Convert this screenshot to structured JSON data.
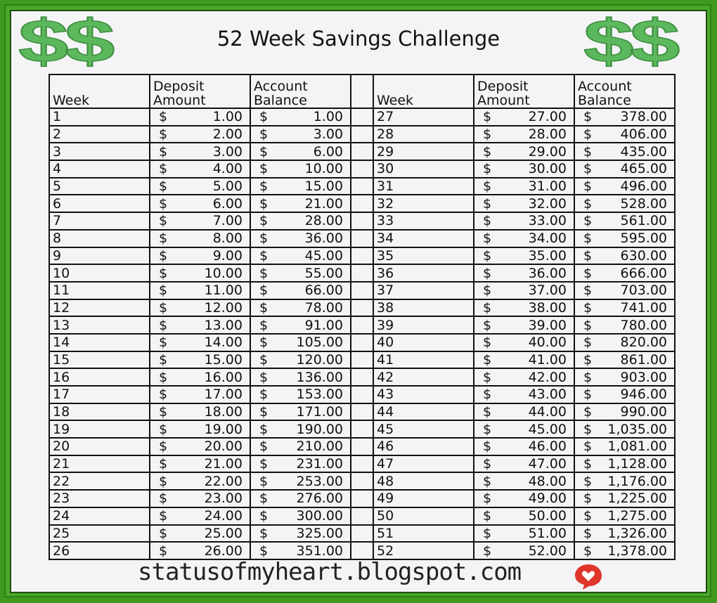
{
  "title": "52 Week Savings Challenge",
  "logo_text": "$$",
  "headers": {
    "week": "Week",
    "deposit": "Deposit Amount",
    "deposit_l1": "Deposit",
    "deposit_l2": "Amount",
    "balance_l1": "Account",
    "balance_l2": "Balance"
  },
  "currency_symbol": "$",
  "left_rows": [
    [
      "1",
      "1.00",
      "1.00"
    ],
    [
      "2",
      "2.00",
      "3.00"
    ],
    [
      "3",
      "3.00",
      "6.00"
    ],
    [
      "4",
      "4.00",
      "10.00"
    ],
    [
      "5",
      "5.00",
      "15.00"
    ],
    [
      "6",
      "6.00",
      "21.00"
    ],
    [
      "7",
      "7.00",
      "28.00"
    ],
    [
      "8",
      "8.00",
      "36.00"
    ],
    [
      "9",
      "9.00",
      "45.00"
    ],
    [
      "10",
      "10.00",
      "55.00"
    ],
    [
      "11",
      "11.00",
      "66.00"
    ],
    [
      "12",
      "12.00",
      "78.00"
    ],
    [
      "13",
      "13.00",
      "91.00"
    ],
    [
      "14",
      "14.00",
      "105.00"
    ],
    [
      "15",
      "15.00",
      "120.00"
    ],
    [
      "16",
      "16.00",
      "136.00"
    ],
    [
      "17",
      "17.00",
      "153.00"
    ],
    [
      "18",
      "18.00",
      "171.00"
    ],
    [
      "19",
      "19.00",
      "190.00"
    ],
    [
      "20",
      "20.00",
      "210.00"
    ],
    [
      "21",
      "21.00",
      "231.00"
    ],
    [
      "22",
      "22.00",
      "253.00"
    ],
    [
      "23",
      "23.00",
      "276.00"
    ],
    [
      "24",
      "24.00",
      "300.00"
    ],
    [
      "25",
      "25.00",
      "325.00"
    ],
    [
      "26",
      "26.00",
      "351.00"
    ]
  ],
  "right_rows": [
    [
      "27",
      "27.00",
      "378.00"
    ],
    [
      "28",
      "28.00",
      "406.00"
    ],
    [
      "29",
      "29.00",
      "435.00"
    ],
    [
      "30",
      "30.00",
      "465.00"
    ],
    [
      "31",
      "31.00",
      "496.00"
    ],
    [
      "32",
      "32.00",
      "528.00"
    ],
    [
      "33",
      "33.00",
      "561.00"
    ],
    [
      "34",
      "34.00",
      "595.00"
    ],
    [
      "35",
      "35.00",
      "630.00"
    ],
    [
      "36",
      "36.00",
      "666.00"
    ],
    [
      "37",
      "37.00",
      "703.00"
    ],
    [
      "38",
      "38.00",
      "741.00"
    ],
    [
      "39",
      "39.00",
      "780.00"
    ],
    [
      "40",
      "40.00",
      "820.00"
    ],
    [
      "41",
      "41.00",
      "861.00"
    ],
    [
      "42",
      "42.00",
      "903.00"
    ],
    [
      "43",
      "43.00",
      "946.00"
    ],
    [
      "44",
      "44.00",
      "990.00"
    ],
    [
      "45",
      "45.00",
      "1,035.00"
    ],
    [
      "46",
      "46.00",
      "1,081.00"
    ],
    [
      "47",
      "47.00",
      "1,128.00"
    ],
    [
      "48",
      "48.00",
      "1,176.00"
    ],
    [
      "49",
      "49.00",
      "1,225.00"
    ],
    [
      "50",
      "50.00",
      "1,275.00"
    ],
    [
      "51",
      "51.00",
      "1,326.00"
    ],
    [
      "52",
      "52.00",
      "1,378.00"
    ]
  ],
  "footer": "statusofmyheart.blogspot.com",
  "colors": {
    "border_green": "#49a82a",
    "dollar_green": "#5cb85c",
    "heart_red": "#e0362c"
  },
  "icons": {
    "logo": "dollar-signs-icon",
    "footer": "heart-speech-bubble-icon"
  }
}
